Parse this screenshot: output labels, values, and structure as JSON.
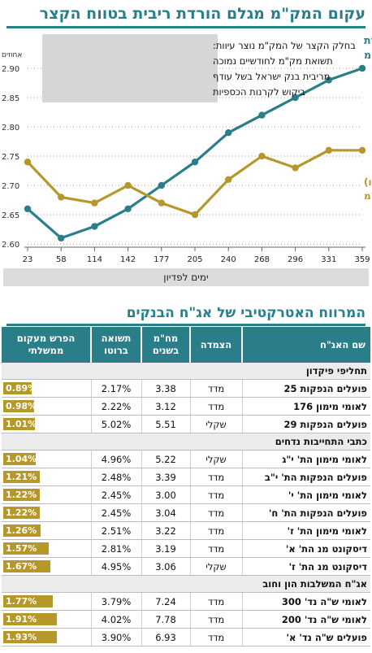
{
  "page": {
    "title": "עקום המק\"מ מגלם הורדת ריבית בטווח הקצר",
    "x_bar_label": "ימים לפדיון"
  },
  "chart_data": {
    "type": "line",
    "x": [
      23,
      58,
      114,
      142,
      177,
      205,
      240,
      268,
      296,
      331,
      359
    ],
    "y_unit_label": "אחוזים",
    "ylim": [
      2.6,
      2.9
    ],
    "yticks": [
      "2.60",
      "2.65",
      "2.70",
      "2.75",
      "2.80",
      "2.85",
      "2.90"
    ],
    "grid": "horizontal dotted",
    "series": [
      {
        "name": "הריבית העתידית הנגזרת מתשואות המק\"מ",
        "name_lines": [
          "הריבית העתידית הנגזרת",
          "מתשואות המק\"מ"
        ],
        "color": "#2a7e8a",
        "values": [
          2.66,
          2.61,
          2.63,
          2.66,
          2.7,
          2.74,
          2.79,
          2.82,
          2.85,
          2.88,
          2.9
        ]
      },
      {
        "name": "תשואה לפדיון (ברוטו) של עקום המק\"מ",
        "name_lines": [
          "תשואה לפדיון (ברוטו)",
          "של עקום המק\"מ"
        ],
        "color": "#b5972a",
        "values": [
          2.74,
          2.68,
          2.67,
          2.7,
          2.67,
          2.65,
          2.71,
          2.75,
          2.73,
          2.76,
          2.76
        ]
      }
    ],
    "annotation": {
      "lines": [
        "בחלק הקצר של המק\"מ נוצר עיוות:",
        "תשואת מק\"מ לחודשיים נמוכה",
        "מריבית בנק ישראל בשל עודף",
        "ביקוש לקרנות הכספיות"
      ],
      "background": "#d6d6d6"
    }
  },
  "table": {
    "title": "המרווח האטרקטיבי של אג\"ח הבנקים",
    "headers": [
      "שם האג\"ח",
      "הצמדה",
      "מח\"מ בשנים",
      "תשואה ברוטו",
      "הפרש מעקום ממשלתי"
    ],
    "header_color": "#2a7e8a",
    "bar_color": "#b5972a",
    "sections": [
      {
        "name": "תחליפי פיקדון",
        "rows": [
          {
            "name": "פועלים הנפקות 25",
            "link": "מדד",
            "duration": "3.38",
            "yield": "2.17%",
            "spread": "0.89%",
            "spread_value": 0.89
          },
          {
            "name": "לאומי מימון 176",
            "link": "מדד",
            "duration": "3.12",
            "yield": "2.22%",
            "spread": "0.98%",
            "spread_value": 0.98
          },
          {
            "name": "פועלים הנפקות 29",
            "link": "שקלי",
            "duration": "5.51",
            "yield": "5.02%",
            "spread": "1.01%",
            "spread_value": 1.01
          }
        ]
      },
      {
        "name": "כתבי התחייבות נדחים",
        "rows": [
          {
            "name": "לאומי מימון הת' י\"ג",
            "link": "שקלי",
            "duration": "5.22",
            "yield": "4.96%",
            "spread": "1.04%",
            "spread_value": 1.04
          },
          {
            "name": "פועלים הנפקות הת' י\"ב",
            "link": "מדד",
            "duration": "3.39",
            "yield": "2.48%",
            "spread": "1.21%",
            "spread_value": 1.21
          },
          {
            "name": "לאומי מימון הת' י'",
            "link": "מדד",
            "duration": "3.00",
            "yield": "2.45%",
            "spread": "1.22%",
            "spread_value": 1.22
          },
          {
            "name": "פועלים הנפקות הת' ח'",
            "link": "מדד",
            "duration": "3.04",
            "yield": "2.45%",
            "spread": "1.22%",
            "spread_value": 1.22
          },
          {
            "name": "לאומי מימון הת' ז'",
            "link": "מדד",
            "duration": "3.22",
            "yield": "2.51%",
            "spread": "1.26%",
            "spread_value": 1.26
          },
          {
            "name": "דיסקונט מנ הת' א'",
            "link": "מדד",
            "duration": "3.19",
            "yield": "2.81%",
            "spread": "1.57%",
            "spread_value": 1.57
          },
          {
            "name": "דיסקונט מנ הת' ז'",
            "link": "שקלי",
            "duration": "3.06",
            "yield": "4.95%",
            "spread": "1.67%",
            "spread_value": 1.67
          }
        ]
      },
      {
        "name": "אג\"ח המשלבות הון וחוב",
        "rows": [
          {
            "name": "לאומי ש\"ה נד' 300",
            "link": "מדד",
            "duration": "7.24",
            "yield": "3.79%",
            "spread": "1.77%",
            "spread_value": 1.77
          },
          {
            "name": "לאומי ש\"ה נד' 200",
            "link": "מדד",
            "duration": "7.78",
            "yield": "4.02%",
            "spread": "1.91%",
            "spread_value": 1.91
          },
          {
            "name": "פועלים ש\"ה נד' א'",
            "link": "מדד",
            "duration": "6.93",
            "yield": "3.90%",
            "spread": "1.93%",
            "spread_value": 1.93
          }
        ]
      }
    ]
  }
}
